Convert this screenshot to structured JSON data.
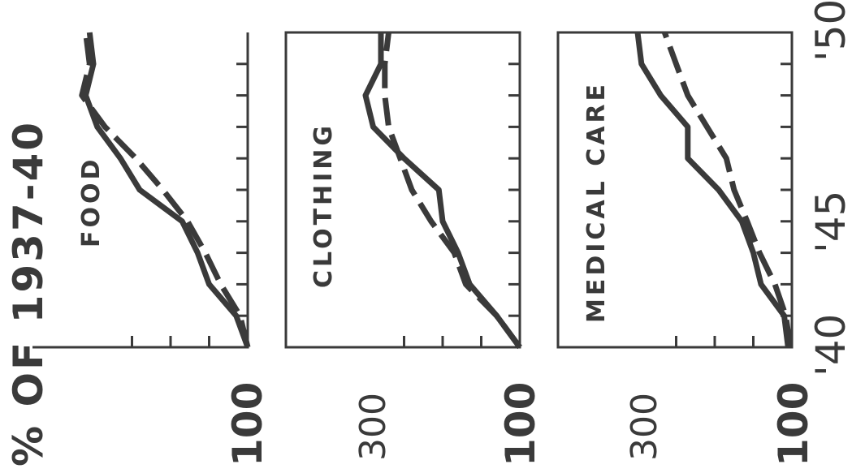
{
  "figure": {
    "title": "% OF 1937-40",
    "orientation": "rotated 90 degrees counter-clockwise"
  },
  "chart_data": [
    {
      "type": "line",
      "panel_label": "FOOD",
      "x": [
        1940,
        1941,
        1942,
        1943,
        1944,
        1945,
        1946,
        1947,
        1948,
        1949,
        1950
      ],
      "series": [
        {
          "style": "solid",
          "values": [
            100,
            115,
            150,
            165,
            185,
            240,
            265,
            295,
            310,
            300,
            305
          ]
        },
        {
          "style": "dashed",
          "values": [
            100,
            110,
            135,
            155,
            178,
            210,
            245,
            285,
            315,
            305,
            310
          ]
        }
      ],
      "ytick_labels": [
        "100"
      ],
      "xtick_labels": []
    },
    {
      "type": "line",
      "panel_label": "CLOTHING",
      "x": [
        1940,
        1941,
        1942,
        1943,
        1944,
        1945,
        1946,
        1947,
        1948,
        1949,
        1950
      ],
      "series": [
        {
          "style": "solid",
          "values": [
            100,
            130,
            165,
            180,
            200,
            205,
            250,
            290,
            300,
            280,
            280
          ]
        },
        {
          "style": "dashed",
          "values": [
            100,
            130,
            170,
            185,
            215,
            240,
            255,
            270,
            275,
            275,
            270
          ]
        }
      ],
      "ytick_labels": [
        "300",
        "100"
      ],
      "xtick_labels": []
    },
    {
      "type": "line",
      "panel_label": "MEDICAL CARE",
      "x": [
        1940,
        1941,
        1942,
        1943,
        1944,
        1945,
        1946,
        1947,
        1948,
        1949,
        1950
      ],
      "series": [
        {
          "style": "solid",
          "values": [
            105,
            110,
            140,
            150,
            165,
            195,
            235,
            235,
            270,
            295,
            300
          ]
        },
        {
          "style": "dashed",
          "values": [
            102,
            108,
            122,
            142,
            158,
            175,
            185,
            210,
            235,
            250,
            265
          ]
        }
      ],
      "ytick_labels": [
        "300",
        "100"
      ],
      "xtick_labels": [
        "'40",
        "'45",
        "'50"
      ]
    }
  ]
}
